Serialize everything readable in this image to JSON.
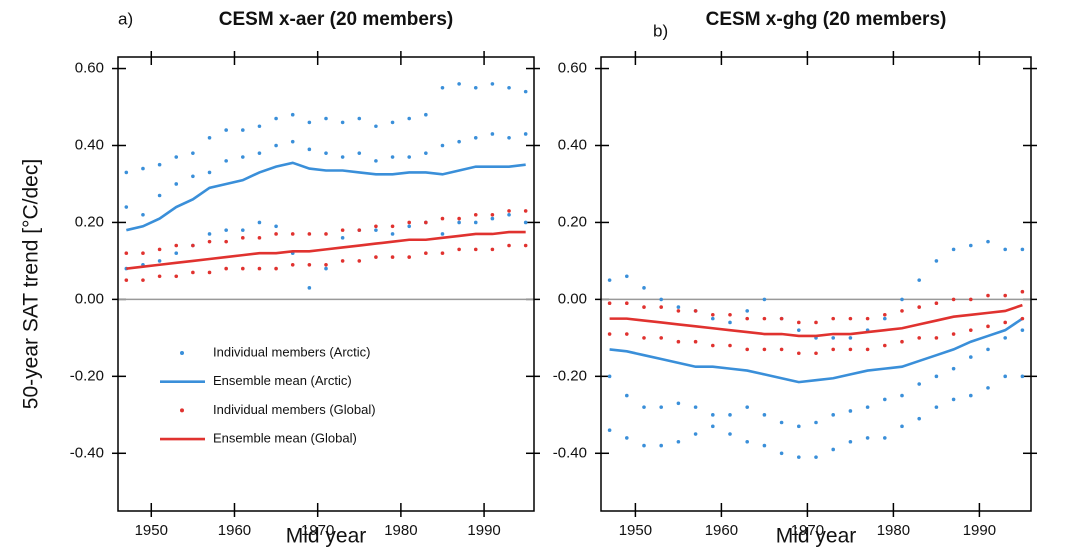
{
  "chart_data": [
    {
      "type": "line",
      "panel_label": "a)",
      "title": "CESM x-aer (20 members)",
      "x_label": "Mid year",
      "y_label": "50-year SAT trend [°C/dec]",
      "legend": "lower left",
      "x": [
        1947,
        1949,
        1951,
        1953,
        1955,
        1957,
        1959,
        1961,
        1963,
        1965,
        1967,
        1969,
        1971,
        1973,
        1975,
        1977,
        1979,
        1981,
        1983,
        1985,
        1987,
        1989,
        1991,
        1993,
        1995
      ],
      "xlim": [
        1946,
        1996
      ],
      "xticks": [
        1950,
        1960,
        1970,
        1980,
        1990
      ],
      "ylim": [
        -0.55,
        0.63
      ],
      "yticks": [
        {
          "value": -0.4,
          "label": "-0.40"
        },
        {
          "value": -0.2,
          "label": "-0.20"
        },
        {
          "value": 0,
          "label": "0.00"
        },
        {
          "value": 0.2,
          "label": "0.20"
        },
        {
          "value": 0.4,
          "label": "0.40"
        },
        {
          "value": 0.6,
          "label": "0.60"
        }
      ],
      "zero_line": true,
      "series": [
        {
          "name": "Individual members (Arctic)",
          "color": "#3a8fd9",
          "style": "markers",
          "values": [
            0.33,
            0.34,
            0.35,
            0.37,
            0.38,
            0.42,
            0.44,
            0.44,
            0.45,
            0.47,
            0.48,
            0.46,
            0.47,
            0.46,
            0.47,
            0.45,
            0.46,
            0.47,
            0.48,
            0.55,
            0.56,
            0.55,
            0.56,
            0.55,
            0.54
          ]
        },
        {
          "color": "#3a8fd9",
          "style": "markers",
          "values": [
            0.24,
            0.22,
            0.27,
            0.3,
            0.32,
            0.33,
            0.36,
            0.37,
            0.38,
            0.4,
            0.41,
            0.39,
            0.38,
            0.37,
            0.38,
            0.36,
            0.37,
            0.37,
            0.38,
            0.4,
            0.41,
            0.42,
            0.43,
            0.42,
            0.43
          ]
        },
        {
          "color": "#3a8fd9",
          "style": "markers",
          "values": [
            0.08,
            0.09,
            0.1,
            0.12,
            0.14,
            0.17,
            0.18,
            0.18,
            0.2,
            0.19,
            0.12,
            0.03,
            0.08,
            0.16,
            0.18,
            0.18,
            0.17,
            0.19,
            0.2,
            0.17,
            0.2,
            0.2,
            0.21,
            0.22,
            0.2
          ]
        },
        {
          "name": "Ensemble mean (Arctic)",
          "color": "#3a8fd9",
          "style": "line",
          "values": [
            0.18,
            0.19,
            0.21,
            0.24,
            0.26,
            0.29,
            0.3,
            0.31,
            0.33,
            0.345,
            0.355,
            0.34,
            0.335,
            0.335,
            0.33,
            0.325,
            0.325,
            0.33,
            0.33,
            0.325,
            0.335,
            0.345,
            0.345,
            0.345,
            0.35
          ]
        },
        {
          "name": "Individual members (Global)",
          "color": "#e0322f",
          "style": "markers",
          "values": [
            0.12,
            0.12,
            0.13,
            0.14,
            0.14,
            0.15,
            0.15,
            0.16,
            0.16,
            0.17,
            0.17,
            0.17,
            0.17,
            0.18,
            0.18,
            0.19,
            0.19,
            0.2,
            0.2,
            0.21,
            0.21,
            0.22,
            0.22,
            0.23,
            0.23
          ]
        },
        {
          "color": "#e0322f",
          "style": "markers",
          "values": [
            0.05,
            0.05,
            0.06,
            0.06,
            0.07,
            0.07,
            0.08,
            0.08,
            0.08,
            0.08,
            0.09,
            0.09,
            0.09,
            0.1,
            0.1,
            0.11,
            0.11,
            0.11,
            0.12,
            0.12,
            0.13,
            0.13,
            0.13,
            0.14,
            0.14
          ]
        },
        {
          "name": "Ensemble mean (Global)",
          "color": "#e0322f",
          "style": "line",
          "values": [
            0.08,
            0.085,
            0.09,
            0.095,
            0.1,
            0.105,
            0.11,
            0.115,
            0.12,
            0.12,
            0.125,
            0.125,
            0.13,
            0.135,
            0.14,
            0.145,
            0.15,
            0.155,
            0.155,
            0.16,
            0.165,
            0.17,
            0.17,
            0.175,
            0.175
          ]
        }
      ]
    },
    {
      "type": "line",
      "panel_label": "b)",
      "title": "CESM x-ghg (20 members)",
      "x_label": "Mid year",
      "x": [
        1947,
        1949,
        1951,
        1953,
        1955,
        1957,
        1959,
        1961,
        1963,
        1965,
        1967,
        1969,
        1971,
        1973,
        1975,
        1977,
        1979,
        1981,
        1983,
        1985,
        1987,
        1989,
        1991,
        1993,
        1995
      ],
      "xlim": [
        1946,
        1996
      ],
      "xticks": [
        1950,
        1960,
        1970,
        1980,
        1990
      ],
      "ylim": [
        -0.55,
        0.63
      ],
      "yticks": [
        {
          "value": -0.4,
          "label": "-0.40"
        },
        {
          "value": -0.2,
          "label": "-0.20"
        },
        {
          "value": 0,
          "label": "0.00"
        },
        {
          "value": 0.2,
          "label": "0.20"
        },
        {
          "value": 0.4,
          "label": "0.40"
        },
        {
          "value": 0.6,
          "label": "0.60"
        }
      ],
      "zero_line": true,
      "series": [
        {
          "color": "#3a8fd9",
          "style": "markers",
          "values": [
            0.05,
            0.06,
            0.03,
            0.0,
            -0.02,
            -0.03,
            -0.05,
            -0.06,
            -0.03,
            0.0,
            -0.05,
            -0.08,
            -0.1,
            -0.1,
            -0.1,
            -0.08,
            -0.05,
            0.0,
            0.05,
            0.1,
            0.13,
            0.14,
            0.15,
            0.13,
            0.13
          ]
        },
        {
          "color": "#3a8fd9",
          "style": "markers",
          "values": [
            -0.2,
            -0.25,
            -0.28,
            -0.28,
            -0.27,
            -0.28,
            -0.3,
            -0.3,
            -0.28,
            -0.3,
            -0.32,
            -0.33,
            -0.32,
            -0.3,
            -0.29,
            -0.28,
            -0.26,
            -0.25,
            -0.22,
            -0.2,
            -0.18,
            -0.15,
            -0.13,
            -0.1,
            -0.08
          ]
        },
        {
          "color": "#3a8fd9",
          "style": "markers",
          "values": [
            -0.34,
            -0.36,
            -0.38,
            -0.38,
            -0.37,
            -0.35,
            -0.33,
            -0.35,
            -0.37,
            -0.38,
            -0.4,
            -0.41,
            -0.41,
            -0.39,
            -0.37,
            -0.36,
            -0.36,
            -0.33,
            -0.31,
            -0.28,
            -0.26,
            -0.25,
            -0.23,
            -0.2,
            -0.2
          ]
        },
        {
          "color": "#3a8fd9",
          "style": "line",
          "values": [
            -0.13,
            -0.135,
            -0.145,
            -0.155,
            -0.165,
            -0.175,
            -0.175,
            -0.18,
            -0.185,
            -0.195,
            -0.205,
            -0.215,
            -0.21,
            -0.205,
            -0.195,
            -0.185,
            -0.18,
            -0.175,
            -0.16,
            -0.145,
            -0.13,
            -0.11,
            -0.095,
            -0.08,
            -0.05
          ]
        },
        {
          "color": "#e0322f",
          "style": "markers",
          "values": [
            -0.01,
            -0.01,
            -0.02,
            -0.02,
            -0.03,
            -0.03,
            -0.04,
            -0.04,
            -0.05,
            -0.05,
            -0.05,
            -0.06,
            -0.06,
            -0.05,
            -0.05,
            -0.05,
            -0.04,
            -0.03,
            -0.02,
            -0.01,
            0.0,
            0.0,
            0.01,
            0.01,
            0.02
          ]
        },
        {
          "color": "#e0322f",
          "style": "markers",
          "values": [
            -0.09,
            -0.09,
            -0.1,
            -0.1,
            -0.11,
            -0.11,
            -0.12,
            -0.12,
            -0.13,
            -0.13,
            -0.13,
            -0.14,
            -0.14,
            -0.13,
            -0.13,
            -0.13,
            -0.12,
            -0.11,
            -0.1,
            -0.1,
            -0.09,
            -0.08,
            -0.07,
            -0.06,
            -0.05
          ]
        },
        {
          "color": "#e0322f",
          "style": "line",
          "values": [
            -0.05,
            -0.05,
            -0.055,
            -0.06,
            -0.065,
            -0.07,
            -0.075,
            -0.08,
            -0.085,
            -0.09,
            -0.09,
            -0.095,
            -0.095,
            -0.09,
            -0.09,
            -0.085,
            -0.08,
            -0.075,
            -0.065,
            -0.055,
            -0.045,
            -0.04,
            -0.035,
            -0.03,
            -0.015
          ]
        }
      ]
    }
  ]
}
